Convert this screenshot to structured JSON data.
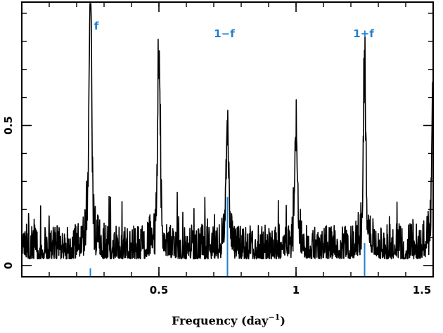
{
  "chart_data": {
    "type": "line",
    "title": "",
    "xlabel": "Frequency (day",
    "xlabel_superscript": "−1",
    "xlabel_close": ")",
    "ylabel": "",
    "xlim": [
      0,
      1.5
    ],
    "ylim": [
      -0.04,
      0.94
    ],
    "x_ticks": [
      {
        "value": 0.5,
        "label": "0.5"
      },
      {
        "value": 1.0,
        "label": "1"
      },
      {
        "value": 1.5,
        "label": "1.5"
      }
    ],
    "y_ticks": [
      {
        "value": 0.0,
        "label": "0"
      },
      {
        "value": 0.5,
        "label": "0.5"
      }
    ],
    "x_minor_step": 0.1,
    "y_minor_step": 0.1,
    "grid": false,
    "series": [
      {
        "color": "#000000",
        "noise_base": 0.06,
        "noise_amplitude": 0.07,
        "peaks": [
          {
            "x": 0.25,
            "height": 0.93
          },
          {
            "x": 0.5,
            "height": 0.72
          },
          {
            "x": 0.75,
            "height": 0.43
          },
          {
            "x": 1.0,
            "height": 0.41
          },
          {
            "x": 1.25,
            "height": 0.61
          },
          {
            "x": 1.5,
            "height": 0.65
          }
        ]
      }
    ],
    "annotations": [
      {
        "x": 0.25,
        "label": "f",
        "color": "#1e7fd0",
        "line_top": -0.04,
        "line_bottom": -0.01
      },
      {
        "x": 0.75,
        "label": "1−f",
        "color": "#1e7fd0",
        "line_top": 0.245,
        "line_bottom": -0.04
      },
      {
        "x": 1.25,
        "label": "1+f",
        "color": "#1e7fd0",
        "line_top": 0.08,
        "line_bottom": -0.04
      }
    ]
  }
}
